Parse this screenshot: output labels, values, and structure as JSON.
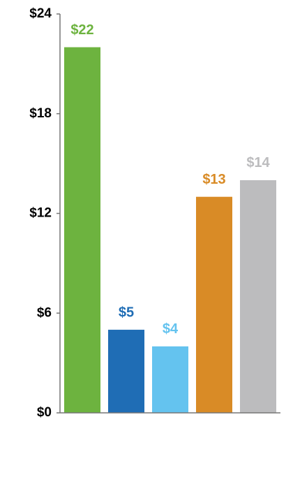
{
  "chart_data": {
    "type": "bar",
    "values": [
      22,
      5,
      4,
      13,
      14
    ],
    "value_labels": [
      "$22",
      "$5",
      "$4",
      "$13",
      "$14"
    ],
    "colors": [
      "#6db33f",
      "#1f6db5",
      "#64c3ef",
      "#d98b26",
      "#bcbcbe"
    ],
    "ylim": [
      0,
      24
    ],
    "yticks": [
      {
        "value": 0,
        "label": "$0"
      },
      {
        "value": 6,
        "label": "$6"
      },
      {
        "value": 12,
        "label": "$12"
      },
      {
        "value": 18,
        "label": "$18"
      },
      {
        "value": 24,
        "label": "$24"
      }
    ],
    "grid": false
  }
}
